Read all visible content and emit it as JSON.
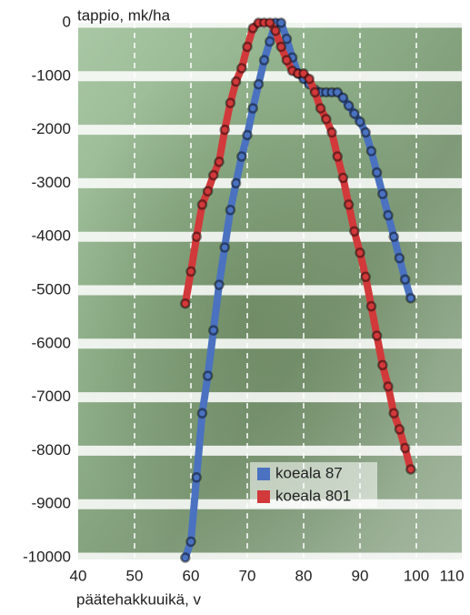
{
  "chart_data": {
    "type": "line",
    "y_label": "tappio, mk/ha",
    "x_label": "päätehakkuuikä, v",
    "x": [
      59,
      60,
      61,
      62,
      63,
      64,
      65,
      66,
      67,
      68,
      69,
      70,
      71,
      72,
      73,
      74,
      75,
      76,
      77,
      78,
      79,
      80,
      81,
      82,
      83,
      84,
      85,
      86,
      87,
      88,
      89,
      90,
      91,
      92,
      93,
      94,
      95,
      96,
      97,
      98,
      99
    ],
    "series": [
      {
        "name": "koeala 87",
        "color": "#4a72c0",
        "values": [
          -10000,
          -9700,
          -8500,
          -7300,
          -6600,
          -5750,
          -4900,
          -4200,
          -3500,
          -3000,
          -2500,
          -2100,
          -1600,
          -1150,
          -700,
          -350,
          0,
          0,
          -300,
          -650,
          -950,
          -1050,
          -1150,
          -1250,
          -1300,
          -1300,
          -1300,
          -1300,
          -1400,
          -1550,
          -1700,
          -1850,
          -2050,
          -2400,
          -2800,
          -3200,
          -3600,
          -4000,
          -4400,
          -4800,
          -5150
        ]
      },
      {
        "name": "koeala 801",
        "color": "#d2393a",
        "values": [
          -5250,
          -4650,
          -4000,
          -3400,
          -3150,
          -2850,
          -2600,
          -2000,
          -1500,
          -1100,
          -850,
          -450,
          -100,
          0,
          0,
          0,
          -150,
          -450,
          -700,
          -900,
          -950,
          -950,
          -1050,
          -1300,
          -1600,
          -1800,
          -2050,
          -2500,
          -2900,
          -3400,
          -3900,
          -4300,
          -4750,
          -5300,
          -5850,
          -6400,
          -6800,
          -7300,
          -7600,
          -7950,
          -8350
        ]
      }
    ],
    "xlim": [
      40,
      110
    ],
    "xticks": [
      40,
      50,
      60,
      70,
      80,
      90,
      100,
      110
    ],
    "ylim": [
      -10000,
      0
    ],
    "yticks": [
      0,
      -1000,
      -2000,
      -3000,
      -4000,
      -5000,
      -6000,
      -7000,
      -8000,
      -9000,
      -10000
    ],
    "grid": true
  }
}
